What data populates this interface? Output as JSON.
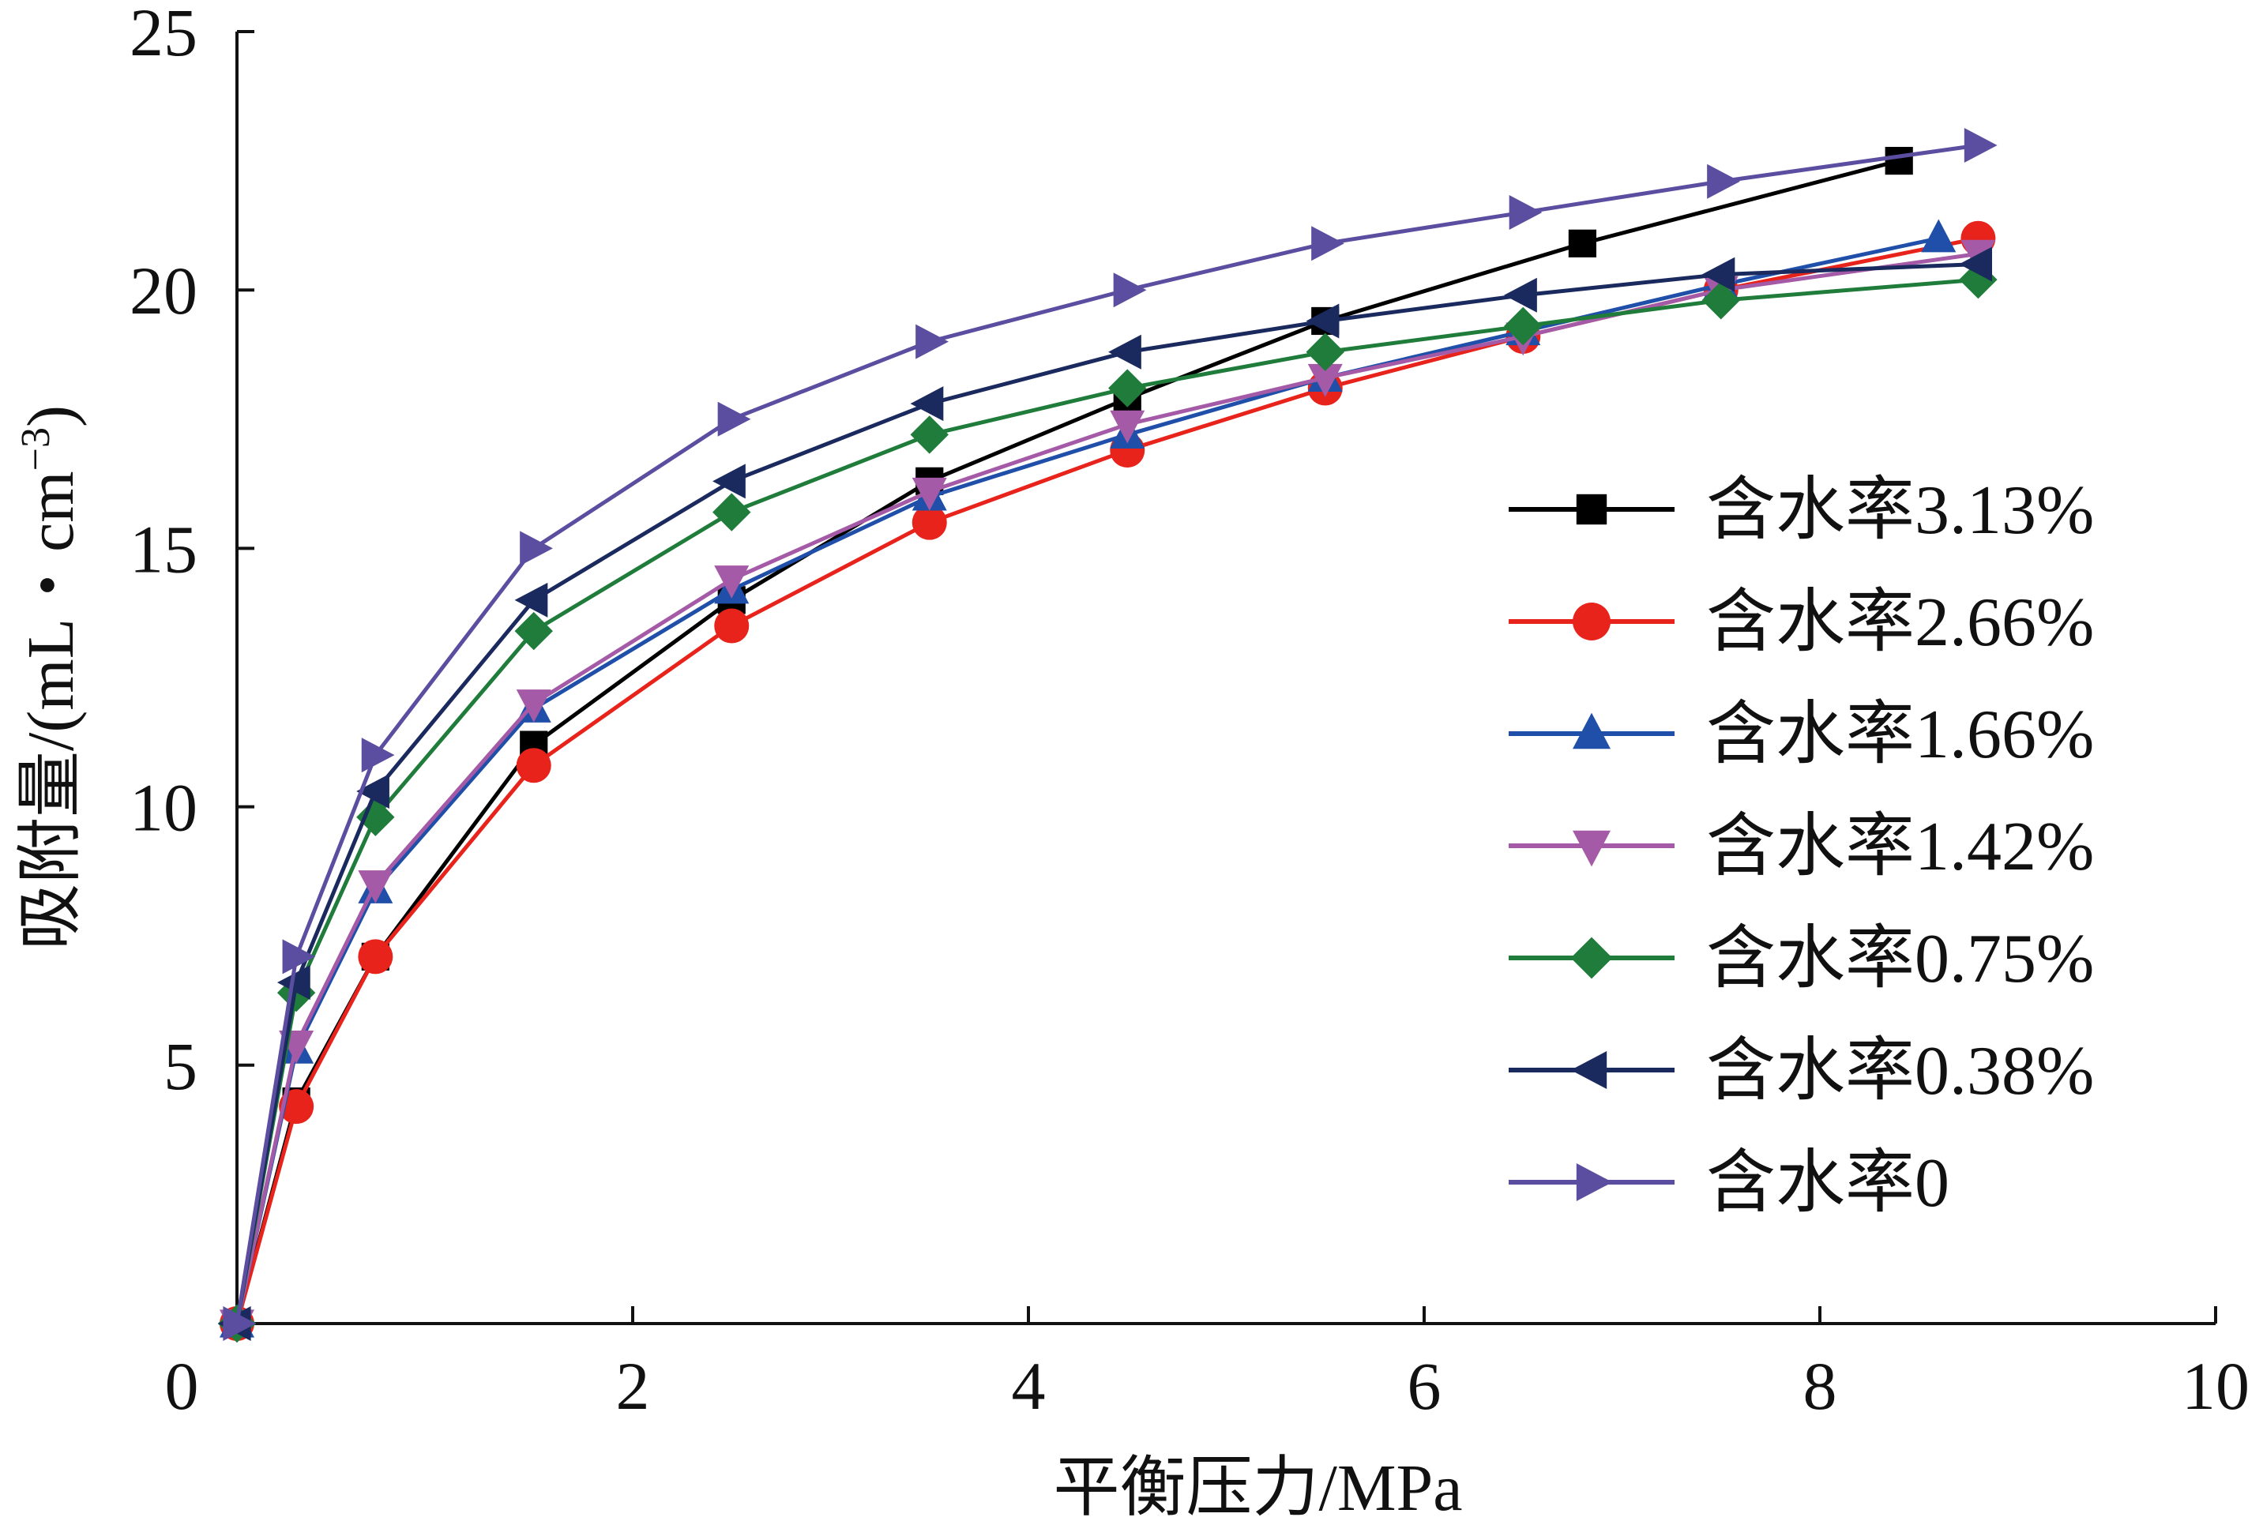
{
  "chart_data": {
    "type": "line",
    "title": "",
    "xlabel": "平衡压力/MPa",
    "ylabel": "吸附量/(mL・cm",
    "ylabel_superscript": "−3",
    "ylabel_suffix": ")",
    "xlim": [
      0,
      10
    ],
    "ylim": [
      0,
      25
    ],
    "xticks": [
      0,
      2,
      4,
      6,
      8,
      10
    ],
    "yticks": [
      5,
      10,
      15,
      20,
      25
    ],
    "grid": false,
    "legend_position": "right",
    "series": [
      {
        "name": "含水率3.13%",
        "color": "#000000",
        "marker": "square",
        "x": [
          0.0,
          0.3,
          0.7,
          1.5,
          2.5,
          3.5,
          4.5,
          5.5,
          6.8,
          8.4
        ],
        "y": [
          0.0,
          4.3,
          7.1,
          11.2,
          14.0,
          16.3,
          17.9,
          19.4,
          20.9,
          22.5
        ]
      },
      {
        "name": "含水率2.66%",
        "color": "#e8231b",
        "marker": "circle",
        "x": [
          0.0,
          0.3,
          0.7,
          1.5,
          2.5,
          3.5,
          4.5,
          5.5,
          6.5,
          7.5,
          8.8
        ],
        "y": [
          0.0,
          4.2,
          7.1,
          10.8,
          13.5,
          15.5,
          16.9,
          18.1,
          19.1,
          20.0,
          21.0
        ]
      },
      {
        "name": "含水率1.66%",
        "color": "#1f4fa8",
        "marker": "triangle-up",
        "x": [
          0.0,
          0.3,
          0.7,
          1.5,
          2.5,
          3.5,
          4.5,
          5.5,
          6.5,
          7.5,
          8.6
        ],
        "y": [
          0.0,
          5.3,
          8.4,
          11.9,
          14.2,
          16.0,
          17.2,
          18.3,
          19.2,
          20.1,
          21.0
        ]
      },
      {
        "name": "含水率1.42%",
        "color": "#a45aa6",
        "marker": "triangle-down",
        "x": [
          0.0,
          0.3,
          0.7,
          1.5,
          2.5,
          3.5,
          4.5,
          5.5,
          6.5,
          7.5,
          8.8
        ],
        "y": [
          0.0,
          5.4,
          8.5,
          12.0,
          14.4,
          16.1,
          17.4,
          18.3,
          19.1,
          20.0,
          20.7
        ]
      },
      {
        "name": "含水率0.75%",
        "color": "#1f7c3a",
        "marker": "diamond",
        "x": [
          0.0,
          0.3,
          0.7,
          1.5,
          2.5,
          3.5,
          4.5,
          5.5,
          6.5,
          7.5,
          8.8
        ],
        "y": [
          0.0,
          6.4,
          9.8,
          13.4,
          15.7,
          17.2,
          18.1,
          18.8,
          19.3,
          19.8,
          20.2
        ]
      },
      {
        "name": "含水率0.38%",
        "color": "#1b2a5e",
        "marker": "triangle-left",
        "x": [
          0.0,
          0.3,
          0.7,
          1.5,
          2.5,
          3.5,
          4.5,
          5.5,
          6.5,
          7.5,
          8.8
        ],
        "y": [
          0.0,
          6.6,
          10.3,
          14.0,
          16.3,
          17.8,
          18.8,
          19.4,
          19.9,
          20.3,
          20.5
        ]
      },
      {
        "name": "含水率0",
        "color": "#5b4ea0",
        "marker": "triangle-right",
        "x": [
          0.0,
          0.3,
          0.7,
          1.5,
          2.5,
          3.5,
          4.5,
          5.5,
          6.5,
          7.5,
          8.8
        ],
        "y": [
          0.0,
          7.1,
          11.0,
          15.0,
          17.5,
          19.0,
          20.0,
          20.9,
          21.5,
          22.1,
          22.8
        ]
      }
    ]
  }
}
